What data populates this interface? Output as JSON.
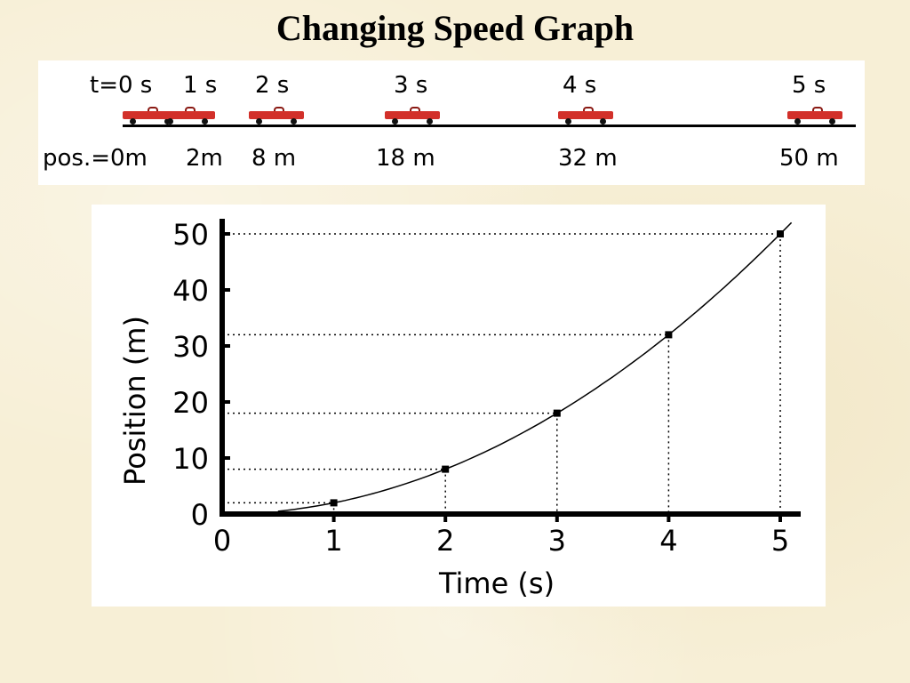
{
  "slide": {
    "title": "Changing Speed Graph"
  },
  "strip": {
    "time_labels": [
      "t=0 s",
      "1 s",
      "2 s",
      "3 s",
      "4 s",
      "5 s"
    ],
    "position_labels": [
      "pos.=0m",
      "2m",
      "8 m",
      "18 m",
      "32 m",
      "50 m"
    ],
    "cart_color": "#d2302a"
  },
  "chart_data": {
    "type": "line",
    "xlabel": "Time (s)",
    "ylabel": "Position (m)",
    "x_ticks": [
      "0",
      "1",
      "2",
      "3",
      "4",
      "5"
    ],
    "y_ticks": [
      "0",
      "10",
      "20",
      "30",
      "40",
      "50"
    ],
    "xlim": [
      0,
      5
    ],
    "ylim": [
      0,
      50
    ],
    "grid": false,
    "series": [
      {
        "x": [
          0,
          1,
          2,
          3,
          4,
          5
        ],
        "y": [
          0,
          2,
          8,
          18,
          32,
          50
        ],
        "marker": "square",
        "curve": "y = 2t^2"
      }
    ],
    "guides": "dotted lines from each data point to both axes"
  }
}
